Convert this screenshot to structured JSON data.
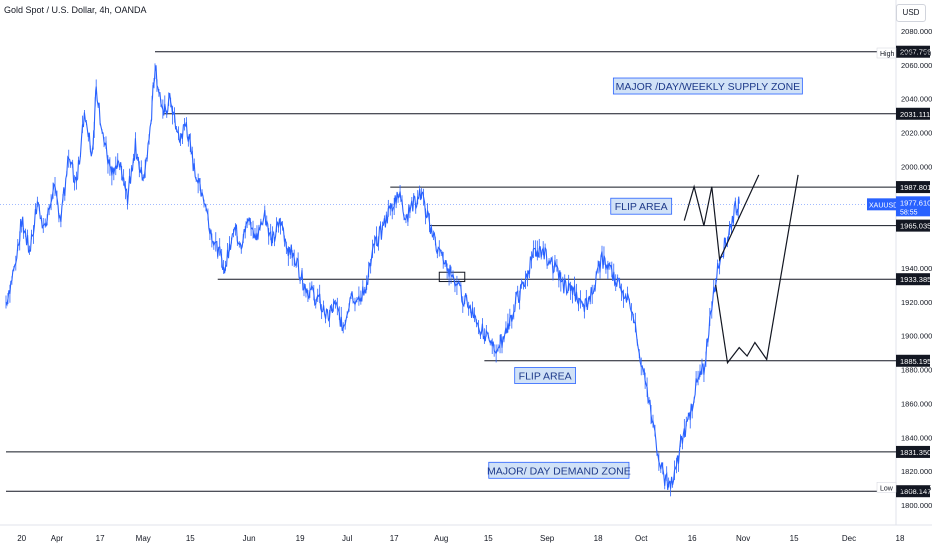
{
  "header": {
    "title": "Gold Spot / U.S. Dollar, 4h, OANDA"
  },
  "currency_button": "USD",
  "chart_data": {
    "type": "candlestick-line",
    "symbol": "XAUUSD",
    "timeframe": "4h",
    "ylim": [
      1795,
      2085
    ],
    "xlim": [
      0,
      229
    ],
    "x_ticks": [
      {
        "x": 4,
        "label": "20"
      },
      {
        "x": 13,
        "label": "Apr"
      },
      {
        "x": 24,
        "label": "17"
      },
      {
        "x": 35,
        "label": "May"
      },
      {
        "x": 47,
        "label": "15"
      },
      {
        "x": 62,
        "label": "Jun"
      },
      {
        "x": 75,
        "label": "19"
      },
      {
        "x": 87,
        "label": "Jul"
      },
      {
        "x": 99,
        "label": "17"
      },
      {
        "x": 111,
        "label": "Aug"
      },
      {
        "x": 123,
        "label": "15"
      },
      {
        "x": 138,
        "label": "Sep"
      },
      {
        "x": 151,
        "label": "18"
      },
      {
        "x": 162,
        "label": "Oct"
      },
      {
        "x": 175,
        "label": "16"
      },
      {
        "x": 188,
        "label": "Nov"
      },
      {
        "x": 201,
        "label": "15"
      },
      {
        "x": 215,
        "label": "Dec"
      },
      {
        "x": 228,
        "label": "18"
      }
    ],
    "y_ticks": [
      {
        "v": 2080,
        "label": "2080.000"
      },
      {
        "v": 2060,
        "label": "2060.000"
      },
      {
        "v": 2040,
        "label": "2040.000"
      },
      {
        "v": 2020,
        "label": "2020.000"
      },
      {
        "v": 2000,
        "label": "2000.000"
      },
      {
        "v": 1940,
        "label": "1940.000"
      },
      {
        "v": 1920,
        "label": "1920.000"
      },
      {
        "v": 1900,
        "label": "1900.000"
      },
      {
        "v": 1880,
        "label": "1880.000"
      },
      {
        "v": 1860,
        "label": "1860.000"
      },
      {
        "v": 1840,
        "label": "1840.000"
      },
      {
        "v": 1820,
        "label": "1820.000"
      },
      {
        "v": 1800,
        "label": "1800.000"
      }
    ],
    "price_key_points": [
      [
        0,
        1920
      ],
      [
        2,
        1938
      ],
      [
        4,
        1968
      ],
      [
        6,
        1950
      ],
      [
        8,
        1978
      ],
      [
        10,
        1962
      ],
      [
        12,
        1988
      ],
      [
        14,
        1970
      ],
      [
        16,
        2005
      ],
      [
        18,
        1990
      ],
      [
        20,
        2032
      ],
      [
        22,
        2008
      ],
      [
        23,
        2045
      ],
      [
        25,
        2015
      ],
      [
        27,
        1995
      ],
      [
        29,
        2000
      ],
      [
        31,
        1982
      ],
      [
        33,
        2012
      ],
      [
        35,
        1990
      ],
      [
        37,
        2028
      ],
      [
        38,
        2060
      ],
      [
        40,
        2030
      ],
      [
        42,
        2040
      ],
      [
        44,
        2015
      ],
      [
        46,
        2025
      ],
      [
        48,
        1998
      ],
      [
        50,
        1985
      ],
      [
        52,
        1965
      ],
      [
        54,
        1950
      ],
      [
        56,
        1940
      ],
      [
        58,
        1965
      ],
      [
        60,
        1955
      ],
      [
        62,
        1968
      ],
      [
        64,
        1958
      ],
      [
        66,
        1972
      ],
      [
        68,
        1955
      ],
      [
        70,
        1968
      ],
      [
        72,
        1952
      ],
      [
        74,
        1945
      ],
      [
        76,
        1930
      ],
      [
        78,
        1925
      ],
      [
        80,
        1920
      ],
      [
        82,
        1910
      ],
      [
        84,
        1918
      ],
      [
        86,
        1905
      ],
      [
        88,
        1925
      ],
      [
        90,
        1920
      ],
      [
        92,
        1930
      ],
      [
        94,
        1955
      ],
      [
        96,
        1962
      ],
      [
        98,
        1975
      ],
      [
        100,
        1985
      ],
      [
        102,
        1970
      ],
      [
        104,
        1978
      ],
      [
        106,
        1984
      ],
      [
        108,
        1965
      ],
      [
        110,
        1952
      ],
      [
        112,
        1942
      ],
      [
        114,
        1935
      ],
      [
        116,
        1925
      ],
      [
        118,
        1918
      ],
      [
        120,
        1910
      ],
      [
        122,
        1900
      ],
      [
        124,
        1892
      ],
      [
        126,
        1895
      ],
      [
        128,
        1906
      ],
      [
        130,
        1920
      ],
      [
        132,
        1930
      ],
      [
        134,
        1945
      ],
      [
        136,
        1952
      ],
      [
        138,
        1946
      ],
      [
        140,
        1940
      ],
      [
        142,
        1930
      ],
      [
        144,
        1928
      ],
      [
        146,
        1922
      ],
      [
        148,
        1918
      ],
      [
        150,
        1930
      ],
      [
        152,
        1945
      ],
      [
        154,
        1940
      ],
      [
        156,
        1930
      ],
      [
        158,
        1924
      ],
      [
        160,
        1915
      ],
      [
        162,
        1885
      ],
      [
        164,
        1860
      ],
      [
        166,
        1835
      ],
      [
        168,
        1815
      ],
      [
        170,
        1812
      ],
      [
        172,
        1835
      ],
      [
        174,
        1850
      ],
      [
        176,
        1870
      ],
      [
        178,
        1880
      ],
      [
        180,
        1920
      ],
      [
        182,
        1945
      ],
      [
        184,
        1958
      ],
      [
        186,
        1975
      ],
      [
        187,
        1978
      ]
    ],
    "horizontal_levels": [
      {
        "price": 2067.758,
        "label": "2067.758",
        "from": 38,
        "bg": "#131722",
        "fg": "#ffffff"
      },
      {
        "price": 2031.111,
        "label": "2031.111",
        "from": 40,
        "bg": "#131722",
        "fg": "#ffffff"
      },
      {
        "price": 1987.801,
        "label": "1987.801",
        "from": 98,
        "bg": "#131722",
        "fg": "#ffffff"
      },
      {
        "price": 1965.035,
        "label": "1965.035",
        "from": 108,
        "bg": "#131722",
        "fg": "#ffffff"
      },
      {
        "price": 1933.385,
        "label": "1933.385",
        "from": 54,
        "bg": "#131722",
        "fg": "#ffffff"
      },
      {
        "price": 1885.195,
        "label": "1885.195",
        "from": 122,
        "bg": "#131722",
        "fg": "#ffffff"
      },
      {
        "price": 1831.35,
        "label": "1831.350",
        "from": 0,
        "bg": "#131722",
        "fg": "#ffffff"
      },
      {
        "price": 1808.147,
        "label": "1808.147",
        "from": 0,
        "bg": "#131722",
        "fg": "#ffffff"
      }
    ],
    "last_price": {
      "price": 1977.61,
      "label": "1977.610",
      "countdown": "58:55",
      "symbol_tag": "XAUUSD",
      "color": "#2962ff"
    },
    "high_marker": {
      "price": 2067.0,
      "label": "High",
      "value": "2067.000"
    },
    "low_marker": {
      "price": 1810.465,
      "label": "Low",
      "value": "1810.465"
    },
    "annotations": [
      {
        "text": "MAJOR  /DAY/WEEKLY SUPPLY ZONE",
        "x": 179,
        "price": 2047.5
      },
      {
        "text": "FLIP AREA",
        "x": 162,
        "price": 1976.5
      },
      {
        "text": "FLIP AREA",
        "x": 137.5,
        "price": 1876.5
      },
      {
        "text": "MAJOR/ DAY DEMAND ZONE",
        "x": 141,
        "price": 1820.5
      }
    ],
    "highlight_box": {
      "x0": 110.5,
      "x1": 117,
      "p0": 1932,
      "p1": 1937.5
    },
    "projection_paths": [
      [
        [
          173,
          1968
        ],
        [
          175.5,
          1988
        ],
        [
          178,
          1965
        ],
        [
          180,
          1988
        ],
        [
          182,
          1945
        ],
        [
          184,
          1955
        ],
        [
          192,
          1995
        ]
      ],
      [
        [
          181,
          1930
        ],
        [
          184,
          1884
        ],
        [
          187,
          1893
        ],
        [
          189,
          1888
        ],
        [
          191,
          1896
        ],
        [
          194,
          1886
        ],
        [
          202,
          1995
        ]
      ]
    ],
    "colors": {
      "price_line": "#2962ff",
      "level_line": "#131722",
      "annotation_bg": "#d1e2f7",
      "annotation_border": "#2962ff",
      "annotation_text": "#1e3a8a"
    }
  }
}
